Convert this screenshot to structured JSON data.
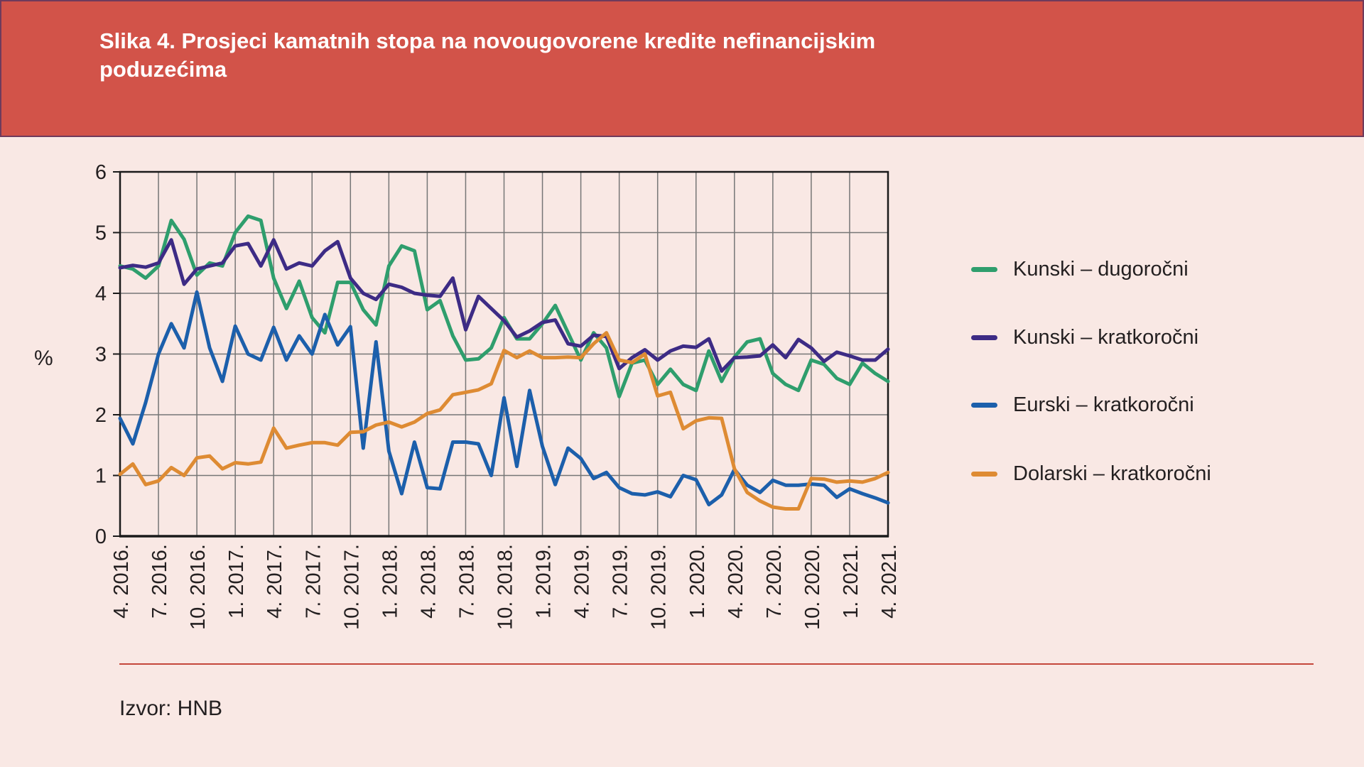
{
  "header": {
    "title": "Slika 4. Prosjeci kamatnih stopa na novougovorene kredite nefinancijskim poduzećima",
    "title_lines": [
      "Slika 4. Prosjeci kamatnih stopa na novougovorene kredite nefinancijskim",
      "poduzećima"
    ]
  },
  "chart_data": {
    "type": "line",
    "title": "Slika 4. Prosjeci kamatnih stopa na novougovorene kredite nefinancijskim poduzećima",
    "xlabel": "",
    "ylabel": "%",
    "ylim": [
      0,
      6
    ],
    "yticks": [
      0,
      1,
      2,
      3,
      4,
      5,
      6
    ],
    "grid": true,
    "legend_position": "right",
    "x_start": "4. 2016.",
    "x_end": "4. 2021.",
    "x_frequency": "monthly",
    "x_points_total": 61,
    "x_tick_step_months": 3,
    "x_tick_labels": [
      "4. 2016.",
      "7. 2016.",
      "10. 2016.",
      "1. 2017.",
      "4. 2017.",
      "7. 2017.",
      "10. 2017.",
      "1. 2018.",
      "4. 2018.",
      "7. 2018.",
      "10. 2018.",
      "1. 2019.",
      "4. 2019.",
      "7. 2019.",
      "10. 2019.",
      "1. 2020.",
      "4. 2020.",
      "7. 2020.",
      "10. 2020.",
      "1. 2021.",
      "4. 2021."
    ],
    "series": [
      {
        "name": "Kunski – dugoročni",
        "color": "#2f9e6d",
        "values": [
          4.45,
          4.4,
          4.25,
          4.45,
          5.2,
          4.89,
          4.3,
          4.5,
          4.45,
          5.0,
          5.27,
          5.2,
          4.25,
          3.75,
          4.2,
          3.6,
          3.35,
          4.18,
          4.18,
          3.73,
          3.48,
          4.45,
          4.78,
          4.7,
          3.73,
          3.88,
          3.3,
          2.9,
          2.92,
          3.1,
          3.6,
          3.25,
          3.25,
          3.5,
          3.8,
          3.35,
          2.9,
          3.35,
          3.1,
          2.3,
          2.85,
          2.9,
          2.5,
          2.75,
          2.5,
          2.4,
          3.05,
          2.55,
          2.95,
          3.2,
          3.25,
          2.68,
          2.5,
          2.4,
          2.9,
          2.83,
          2.6,
          2.5,
          2.85,
          2.68,
          2.55
        ]
      },
      {
        "name": "Kunski – kratkoročni",
        "color": "#3d2b85",
        "values": [
          4.42,
          4.46,
          4.43,
          4.5,
          4.88,
          4.15,
          4.4,
          4.45,
          4.5,
          4.78,
          4.82,
          4.45,
          4.88,
          4.4,
          4.5,
          4.45,
          4.7,
          4.85,
          4.25,
          4.0,
          3.9,
          4.15,
          4.1,
          4.0,
          3.97,
          3.95,
          4.25,
          3.4,
          3.95,
          3.75,
          3.55,
          3.28,
          3.38,
          3.52,
          3.56,
          3.17,
          3.13,
          3.31,
          3.29,
          2.76,
          2.94,
          3.07,
          2.9,
          3.05,
          3.13,
          3.11,
          3.25,
          2.72,
          2.94,
          2.95,
          2.97,
          3.15,
          2.94,
          3.24,
          3.1,
          2.88,
          3.03,
          2.97,
          2.9,
          2.9,
          3.08
        ]
      },
      {
        "name": "Eurski – kratkoročni",
        "color": "#1c5fab",
        "values": [
          1.94,
          1.52,
          2.2,
          3.0,
          3.5,
          3.1,
          4.02,
          3.1,
          2.55,
          3.46,
          3.0,
          2.9,
          3.44,
          2.9,
          3.3,
          3.0,
          3.65,
          3.15,
          3.45,
          1.45,
          3.2,
          1.4,
          0.7,
          1.55,
          0.8,
          0.78,
          1.55,
          1.55,
          1.52,
          1.0,
          2.28,
          1.15,
          2.4,
          1.48,
          0.85,
          1.45,
          1.28,
          0.95,
          1.05,
          0.8,
          0.7,
          0.68,
          0.73,
          0.65,
          1.0,
          0.93,
          0.52,
          0.68,
          1.1,
          0.84,
          0.72,
          0.92,
          0.84,
          0.84,
          0.86,
          0.84,
          0.64,
          0.78,
          0.7,
          0.63,
          0.55
        ]
      },
      {
        "name": "Dolarski – kratkoročni",
        "color": "#de8b33",
        "values": [
          1.02,
          1.19,
          0.85,
          0.91,
          1.13,
          1.0,
          1.29,
          1.32,
          1.11,
          1.21,
          1.19,
          1.22,
          1.78,
          1.45,
          1.5,
          1.54,
          1.54,
          1.5,
          1.71,
          1.72,
          1.83,
          1.88,
          1.8,
          1.88,
          2.02,
          2.08,
          2.33,
          2.37,
          2.41,
          2.51,
          3.06,
          2.94,
          3.05,
          2.94,
          2.94,
          2.95,
          2.94,
          3.17,
          3.35,
          2.9,
          2.86,
          3.0,
          2.31,
          2.37,
          1.77,
          1.9,
          1.95,
          1.94,
          1.11,
          0.72,
          0.58,
          0.48,
          0.45,
          0.45,
          0.95,
          0.94,
          0.89,
          0.91,
          0.89,
          0.95,
          1.05
        ]
      }
    ]
  },
  "source": {
    "text": "Izvor: HNB"
  },
  "colors": {
    "page_background": "#f9e8e4",
    "header_background": "#d25349",
    "header_border": "#6f3a5c",
    "header_text": "#ffffff",
    "grid_line": "#767676",
    "plot_border": "#1a1a1a",
    "axis_text": "#231f20",
    "separator_line": "#c5463b"
  }
}
